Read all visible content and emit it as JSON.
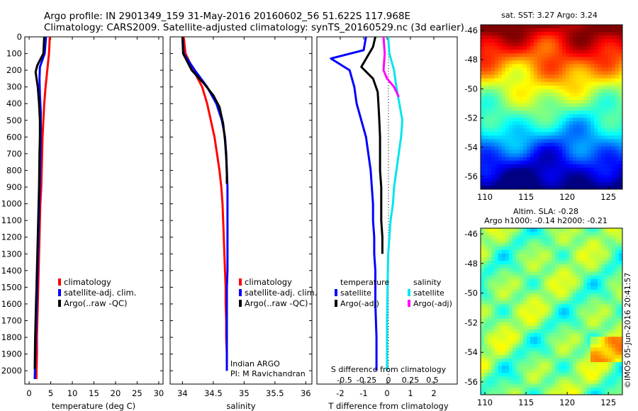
{
  "header": {
    "title_line1": "Argo profile: IN 2901349_159 31-May-2016 20160602_56 51.622S 117.968E",
    "title_line2": "Climatology: CARS2009. Satellite-adjusted climatology: synTS_20160529.nc (3d earlier)"
  },
  "colors": {
    "climatology": "#ff0000",
    "satellite": "#0000ff",
    "argo": "#000000",
    "salinity_sat": "#00e5ee",
    "salinity_argo": "#ff00ff"
  },
  "chart_data": [
    {
      "type": "line",
      "id": "temperature",
      "xlabel": "temperature (deg C)",
      "xlim": [
        -1,
        31
      ],
      "ylim": [
        2080,
        0
      ],
      "xticks": [
        0,
        5,
        10,
        15,
        20,
        25,
        30
      ],
      "yticks": [
        0,
        100,
        200,
        300,
        400,
        500,
        600,
        700,
        800,
        900,
        1000,
        1100,
        1200,
        1300,
        1400,
        1500,
        1600,
        1700,
        1800,
        1900,
        2000
      ],
      "legend": [
        "climatology",
        "satellite-adj. clim.",
        "Argo(..raw -QC)"
      ],
      "series": [
        {
          "name": "climatology",
          "color": "#ff0000",
          "x": [
            4.8,
            4.6,
            4.2,
            3.8,
            3.5,
            3.3,
            3.1,
            3.0,
            2.9,
            2.8,
            2.6,
            2.5,
            2.4,
            2.3,
            2.2,
            2.1,
            2.0,
            1.9,
            1.8,
            1.8,
            1.7,
            1.7
          ],
          "y": [
            0,
            100,
            200,
            300,
            400,
            500,
            600,
            700,
            800,
            900,
            1000,
            1100,
            1200,
            1300,
            1400,
            1500,
            1600,
            1700,
            1800,
            1900,
            2000,
            2050
          ]
        },
        {
          "name": "satellite-adj. clim.",
          "color": "#0000ff",
          "x": [
            3.9,
            3.6,
            2.5,
            2.4,
            2.5,
            2.7,
            2.7,
            2.65,
            2.6,
            2.5,
            2.4,
            2.3,
            2.2,
            2.1,
            2.0,
            1.9,
            1.8,
            1.7,
            1.6,
            1.5,
            1.4,
            1.3
          ],
          "y": [
            0,
            100,
            180,
            250,
            350,
            450,
            550,
            650,
            750,
            850,
            950,
            1050,
            1150,
            1250,
            1350,
            1450,
            1550,
            1650,
            1750,
            1850,
            1950,
            2050
          ]
        },
        {
          "name": "Argo(..raw -QC)",
          "color": "#000000",
          "x": [
            3.5,
            3.3,
            1.9,
            1.5,
            2.0,
            2.3,
            2.5,
            2.5,
            2.4,
            2.35,
            2.3,
            2.2,
            2.1,
            2.0,
            1.9,
            1.8,
            1.7,
            1.6,
            1.5,
            1.4,
            1.3
          ],
          "y": [
            0,
            100,
            170,
            210,
            300,
            400,
            500,
            600,
            700,
            800,
            900,
            1000,
            1100,
            1200,
            1300,
            1400,
            1500,
            1600,
            1700,
            1800,
            1990
          ]
        }
      ]
    },
    {
      "type": "line",
      "id": "salinity",
      "xlabel": "salinity",
      "xlim": [
        33.8,
        36.1
      ],
      "ylim": [
        2080,
        0
      ],
      "xticks": [
        34,
        34.5,
        35,
        35.5,
        36
      ],
      "legend": [
        "climatology",
        "satellite-adj. clim.",
        "Argo(..raw -QC)"
      ],
      "annotation": [
        "Indian ARGO",
        "PI: M Ravichandran"
      ],
      "series": [
        {
          "name": "climatology",
          "color": "#ff0000",
          "x": [
            34.02,
            34.05,
            34.18,
            34.32,
            34.4,
            34.46,
            34.52,
            34.56,
            34.6,
            34.63,
            34.65,
            34.66,
            34.67,
            34.68,
            34.69,
            34.7,
            34.7,
            34.71,
            34.71,
            34.72,
            34.72
          ],
          "y": [
            0,
            100,
            200,
            300,
            400,
            500,
            600,
            700,
            800,
            900,
            1000,
            1100,
            1200,
            1300,
            1400,
            1500,
            1600,
            1700,
            1800,
            1900,
            2000
          ]
        },
        {
          "name": "satellite-adj. clim.",
          "color": "#0000ff",
          "x": [
            34.0,
            34.02,
            34.2,
            34.4,
            34.55,
            34.64,
            34.69,
            34.71,
            34.72,
            34.73,
            34.73,
            34.73,
            34.73,
            34.73,
            34.73,
            34.72,
            34.72,
            34.72,
            34.72,
            34.72,
            34.72
          ],
          "y": [
            0,
            100,
            200,
            300,
            400,
            500,
            600,
            700,
            800,
            900,
            1000,
            1100,
            1200,
            1300,
            1400,
            1500,
            1600,
            1700,
            1800,
            1900,
            2000
          ]
        },
        {
          "name": "Argo(..raw -QC)",
          "color": "#000000",
          "x": [
            34.0,
            34.01,
            34.15,
            34.35,
            34.5,
            34.6,
            34.66,
            34.69,
            34.71,
            34.72,
            34.72
          ],
          "y": [
            0,
            100,
            200,
            280,
            350,
            420,
            520,
            620,
            720,
            820,
            880
          ]
        }
      ]
    },
    {
      "type": "line",
      "id": "differences",
      "xlabel": "T difference from climatology",
      "xlabel2": "S difference from climatology",
      "xlim": [
        -3,
        3
      ],
      "ylim": [
        2080,
        0
      ],
      "xticks": [
        -2,
        -1,
        0,
        1,
        2
      ],
      "xticks2": [
        "-0.5",
        "-0.25",
        "0",
        "0.25",
        "0.5"
      ],
      "legend_temperature_title": "temperature",
      "legend_salinity_title": "salinity",
      "legend_temperature": [
        "satellite",
        "Argo(-adj)"
      ],
      "legend_salinity": [
        "satellite",
        "Argo(-adj)"
      ],
      "series": [
        {
          "name": "satellite",
          "color": "#0000ff",
          "x": [
            -0.9,
            -1.0,
            -2.4,
            -1.6,
            -1.4,
            -1.3,
            -1.1,
            -0.9,
            -0.8,
            -0.7,
            -0.65,
            -0.6,
            -0.6,
            -0.55,
            -0.55,
            -0.5,
            -0.5,
            -0.5,
            -0.45,
            -0.45
          ],
          "y": [
            0,
            80,
            130,
            200,
            300,
            400,
            500,
            600,
            700,
            800,
            900,
            1000,
            1100,
            1200,
            1300,
            1400,
            1500,
            1600,
            1800,
            2000
          ]
        },
        {
          "name": "Argo(-adj)",
          "color": "#000000",
          "x": [
            -0.5,
            -0.6,
            -1.1,
            -0.6,
            -0.4,
            -0.35,
            -0.3,
            -0.3,
            -0.3,
            -0.25,
            -0.25,
            -0.25,
            -0.2,
            -0.2
          ],
          "y": [
            0,
            60,
            180,
            250,
            330,
            450,
            600,
            700,
            800,
            900,
            1000,
            1100,
            1200,
            1300
          ]
        },
        {
          "name": "satellite salinity",
          "color": "#00e5ee",
          "x": [
            0.05,
            0.1,
            0.3,
            0.4,
            0.65,
            0.6,
            0.5,
            0.4,
            0.3,
            0.25,
            0.15,
            0.1,
            0.05,
            0.02,
            0.0,
            0.0,
            0.0
          ],
          "y": [
            0,
            100,
            200,
            300,
            500,
            600,
            700,
            800,
            900,
            1000,
            1100,
            1200,
            1300,
            1500,
            1700,
            1900,
            2000
          ]
        },
        {
          "name": "Argo(-adj) salinity",
          "color": "#ff00ff",
          "x": [
            -0.15,
            -0.1,
            -0.15,
            0.0,
            0.3,
            0.5
          ],
          "y": [
            0,
            100,
            200,
            250,
            300,
            360
          ]
        }
      ]
    }
  ],
  "maps": [
    {
      "id": "sst",
      "title": "sat. SST: 3.27  Argo: 3.24",
      "lat_ticks": [
        "-46",
        "-48",
        "-50",
        "-52",
        "-54",
        "-56"
      ],
      "lon_ticks": [
        "110",
        "115",
        "120",
        "125"
      ]
    },
    {
      "id": "sla",
      "title_line1": "Altim. SLA: -0.28",
      "title_line2": "Argo h1000: -0.14 h2000: -0.21",
      "lat_ticks": [
        "-46",
        "-48",
        "-50",
        "-52",
        "-54",
        "-56"
      ],
      "lon_ticks": [
        "110",
        "115",
        "120",
        "125"
      ]
    }
  ],
  "footer": {
    "credit": "©IMOS 05-Jun-2016 20:41:57"
  }
}
